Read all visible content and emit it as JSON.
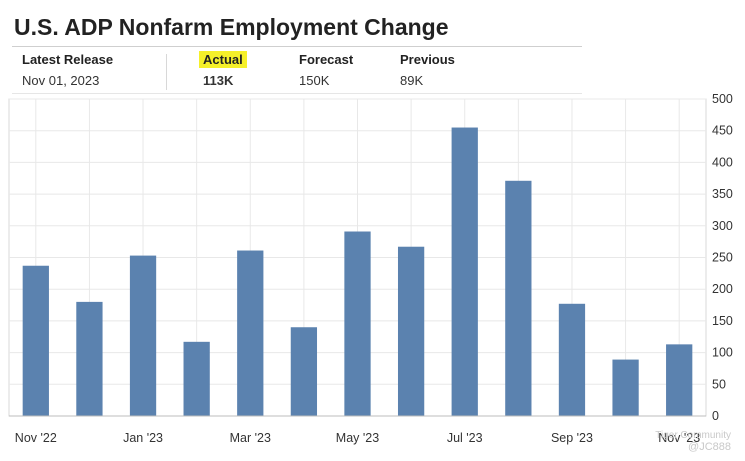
{
  "header": {
    "title": "U.S. ADP Nonfarm Employment Change",
    "latest_release_label": "Latest Release",
    "latest_release_date": "Nov 01, 2023",
    "actual_label": "Actual",
    "actual_value": "113K",
    "forecast_label": "Forecast",
    "forecast_value": "150K",
    "previous_label": "Previous",
    "previous_value": "89K"
  },
  "watermark": {
    "line1": "Tiger Community",
    "line2": "@JC888"
  },
  "colors": {
    "bar": "#5b82af",
    "grid": "#e8e8e8",
    "actual_value": "#d0021b",
    "actual_highlight": "#f5f02a"
  },
  "chart_data": {
    "type": "bar",
    "title": "",
    "xlabel": "",
    "ylabel": "",
    "categories": [
      "Nov '22",
      "Dec '22",
      "Jan '23",
      "Feb '23",
      "Mar '23",
      "Apr '23",
      "May '23",
      "Jun '23",
      "Jul '23",
      "Aug '23",
      "Sep '23",
      "Oct '23",
      "Nov '23"
    ],
    "x_tick_labels": [
      "Nov '22",
      "",
      "Jan '23",
      "",
      "Mar '23",
      "",
      "May '23",
      "",
      "Jul '23",
      "",
      "Sep '23",
      "",
      "Nov '23"
    ],
    "values": [
      237,
      180,
      253,
      117,
      261,
      140,
      291,
      267,
      455,
      371,
      177,
      89,
      113
    ],
    "ylim": [
      0,
      500
    ],
    "yticks": [
      0,
      50,
      100,
      150,
      200,
      250,
      300,
      350,
      400,
      450,
      500
    ],
    "grid": true,
    "y_axis_side": "right"
  }
}
